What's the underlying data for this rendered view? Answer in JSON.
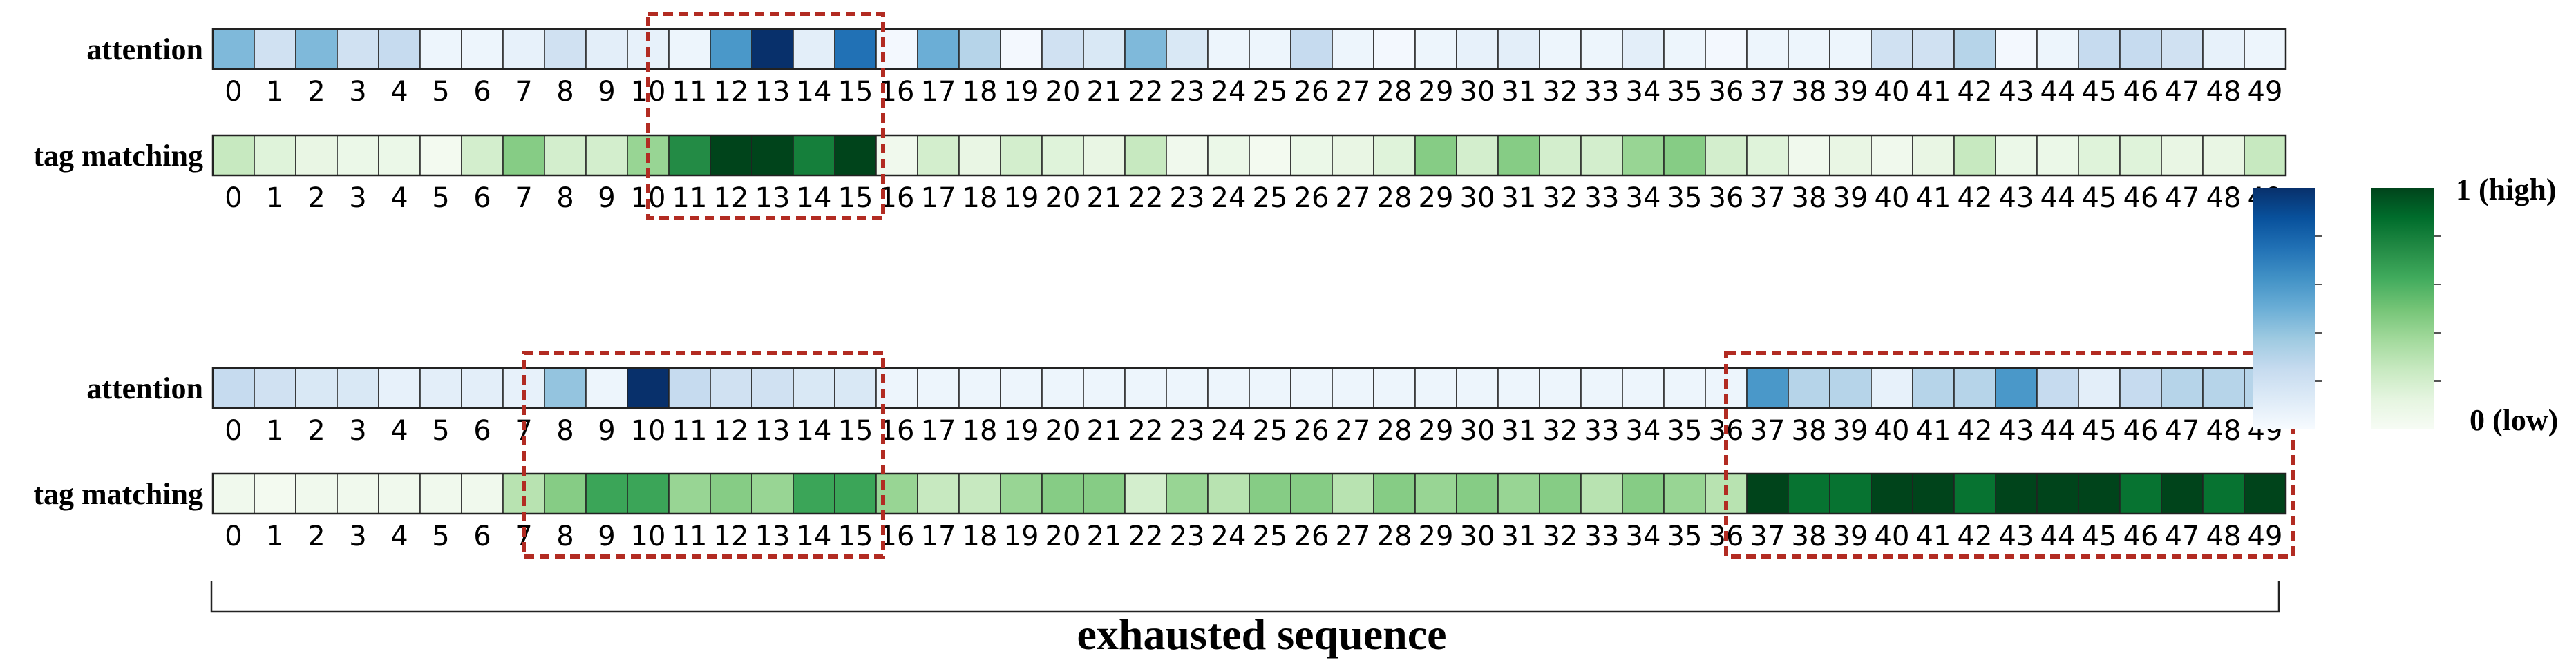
{
  "chart_data": [
    {
      "type": "heatmap",
      "panel": "top",
      "rows": [
        {
          "label": "attention",
          "colormap": "Blues",
          "values": [
            0.45,
            0.2,
            0.45,
            0.2,
            0.25,
            0.05,
            0.05,
            0.08,
            0.2,
            0.1,
            0.08,
            0.05,
            0.6,
            1.0,
            0.1,
            0.75,
            0.02,
            0.5,
            0.3,
            0.02,
            0.2,
            0.15,
            0.45,
            0.15,
            0.05,
            0.05,
            0.25,
            0.05,
            0.02,
            0.05,
            0.08,
            0.1,
            0.05,
            0.05,
            0.1,
            0.05,
            0.02,
            0.05,
            0.05,
            0.05,
            0.2,
            0.2,
            0.3,
            0.02,
            0.05,
            0.25,
            0.25,
            0.2,
            0.08,
            0.05
          ]
        },
        {
          "label": "tag matching",
          "colormap": "Greens",
          "values": [
            0.25,
            0.15,
            0.1,
            0.08,
            0.08,
            0.03,
            0.2,
            0.45,
            0.2,
            0.2,
            0.4,
            0.75,
            1.0,
            1.0,
            0.8,
            1.0,
            0.05,
            0.2,
            0.1,
            0.2,
            0.15,
            0.1,
            0.25,
            0.05,
            0.08,
            0.03,
            0.08,
            0.1,
            0.15,
            0.45,
            0.2,
            0.45,
            0.2,
            0.2,
            0.4,
            0.45,
            0.2,
            0.15,
            0.05,
            0.1,
            0.05,
            0.1,
            0.25,
            0.08,
            0.08,
            0.15,
            0.15,
            0.1,
            0.1,
            0.25
          ]
        }
      ],
      "categories": [
        "0",
        "1",
        "2",
        "3",
        "4",
        "5",
        "6",
        "7",
        "8",
        "9",
        "10",
        "11",
        "12",
        "13",
        "14",
        "15",
        "16",
        "17",
        "18",
        "19",
        "20",
        "21",
        "22",
        "23",
        "24",
        "25",
        "26",
        "27",
        "28",
        "29",
        "30",
        "31",
        "32",
        "33",
        "34",
        "35",
        "36",
        "37",
        "38",
        "39",
        "40",
        "41",
        "42",
        "43",
        "44",
        "45",
        "46",
        "47",
        "48",
        "49"
      ],
      "highlights": [
        [
          11,
          15
        ]
      ]
    },
    {
      "type": "heatmap",
      "panel": "bottom",
      "rows": [
        {
          "label": "attention",
          "colormap": "Blues",
          "values": [
            0.25,
            0.2,
            0.15,
            0.15,
            0.08,
            0.1,
            0.1,
            0.08,
            0.4,
            0.05,
            1.0,
            0.25,
            0.2,
            0.2,
            0.15,
            0.15,
            0.05,
            0.05,
            0.05,
            0.05,
            0.05,
            0.05,
            0.05,
            0.05,
            0.05,
            0.05,
            0.05,
            0.05,
            0.05,
            0.05,
            0.05,
            0.05,
            0.05,
            0.05,
            0.05,
            0.05,
            0.05,
            0.6,
            0.3,
            0.3,
            0.08,
            0.3,
            0.3,
            0.6,
            0.25,
            0.1,
            0.25,
            0.3,
            0.3,
            0.3
          ]
        },
        {
          "label": "tag matching",
          "colormap": "Greens",
          "values": [
            0.05,
            0.03,
            0.05,
            0.05,
            0.05,
            0.05,
            0.05,
            0.3,
            0.45,
            0.65,
            0.65,
            0.4,
            0.45,
            0.4,
            0.65,
            0.65,
            0.4,
            0.25,
            0.25,
            0.4,
            0.45,
            0.45,
            0.2,
            0.4,
            0.3,
            0.45,
            0.45,
            0.3,
            0.45,
            0.4,
            0.45,
            0.4,
            0.45,
            0.3,
            0.45,
            0.4,
            0.3,
            1.0,
            0.85,
            0.85,
            1.0,
            1.0,
            0.85,
            1.0,
            1.0,
            1.0,
            0.85,
            1.0,
            0.85,
            1.0
          ]
        }
      ],
      "categories": [
        "0",
        "1",
        "2",
        "3",
        "4",
        "5",
        "6",
        "7",
        "8",
        "9",
        "10",
        "11",
        "12",
        "13",
        "14",
        "15",
        "16",
        "17",
        "18",
        "19",
        "20",
        "21",
        "22",
        "23",
        "24",
        "25",
        "26",
        "27",
        "28",
        "29",
        "30",
        "31",
        "32",
        "33",
        "34",
        "35",
        "36",
        "37",
        "38",
        "39",
        "40",
        "41",
        "42",
        "43",
        "44",
        "45",
        "46",
        "47",
        "48",
        "49"
      ],
      "highlights": [
        [
          8,
          15
        ],
        [
          37,
          49
        ]
      ]
    }
  ],
  "colorbar": {
    "high_label": "1 (high)",
    "low_label": "0 (low)",
    "colormaps": [
      "Blues",
      "Greens"
    ]
  },
  "caption": "exhausted sequence",
  "colors": {
    "highlight_border": "#b22b22",
    "cell_border": "#222222",
    "blues_low": "#f7fbff",
    "blues_high": "#08306b",
    "greens_low": "#f7fcf5",
    "greens_high": "#00441b"
  }
}
